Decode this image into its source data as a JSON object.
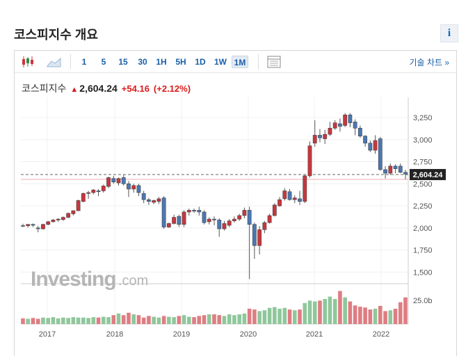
{
  "page": {
    "title": "코스피지수 개요",
    "info_label": "i"
  },
  "toolbar": {
    "timeframes": [
      "1",
      "5",
      "15",
      "30",
      "1H",
      "5H",
      "1D",
      "1W",
      "1M"
    ],
    "active_timeframe": "1M",
    "technical_label": "기술 차트 »"
  },
  "quote": {
    "name": "코스피지수",
    "price": "2,604.24",
    "change": "+54.16",
    "change_pct": "(+2.12%)"
  },
  "watermark": {
    "brand": "Investing",
    "suffix": ".com"
  },
  "colors": {
    "up": "#c9363e",
    "down": "#4a78b3",
    "vol_up": "#8fc79b",
    "vol_down": "#de7d82",
    "accent": "#1a5fa8"
  },
  "chart_data": {
    "type": "candlestick",
    "x_ticks": [
      "2017",
      "2018",
      "2019",
      "2020",
      "2021",
      "2022"
    ],
    "y_ticks": [
      "3,250",
      "3,000",
      "2,750",
      "2,500",
      "2,250",
      "2,000",
      "1,750",
      "1,500"
    ],
    "y_range": [
      1400,
      3400
    ],
    "volume_tick": "25.0b",
    "last_price": 2604.24,
    "last_price_label": "2,604.24",
    "reference_line": 2550,
    "candles": [
      [
        2026,
        2048,
        2010,
        2024
      ],
      [
        2024,
        2045,
        2004,
        2040
      ],
      [
        2040,
        2050,
        2010,
        2030
      ],
      [
        2000,
        2023,
        1950,
        1990
      ],
      [
        1990,
        2048,
        1980,
        2040
      ],
      [
        2040,
        2080,
        2030,
        2070
      ],
      [
        2070,
        2102,
        2060,
        2090
      ],
      [
        2090,
        2110,
        2070,
        2100
      ],
      [
        2095,
        2130,
        2080,
        2120
      ],
      [
        2120,
        2175,
        2110,
        2165
      ],
      [
        2160,
        2200,
        2140,
        2195
      ],
      [
        2195,
        2320,
        2190,
        2310
      ],
      [
        2300,
        2400,
        2290,
        2390
      ],
      [
        2390,
        2420,
        2330,
        2400
      ],
      [
        2400,
        2440,
        2380,
        2430
      ],
      [
        2420,
        2440,
        2360,
        2410
      ],
      [
        2420,
        2490,
        2400,
        2475
      ],
      [
        2470,
        2580,
        2450,
        2570
      ],
      [
        2560,
        2590,
        2500,
        2520
      ],
      [
        2510,
        2570,
        2480,
        2560
      ],
      [
        2570,
        2600,
        2480,
        2500
      ],
      [
        2500,
        2530,
        2350,
        2440
      ],
      [
        2440,
        2500,
        2400,
        2480
      ],
      [
        2480,
        2500,
        2360,
        2400
      ],
      [
        2390,
        2420,
        2280,
        2320
      ],
      [
        2320,
        2340,
        2260,
        2300
      ],
      [
        2290,
        2320,
        2270,
        2310
      ],
      [
        2300,
        2350,
        2270,
        2330
      ],
      [
        2340,
        2360,
        1990,
        2010
      ],
      [
        2010,
        2060,
        2000,
        2050
      ],
      [
        2050,
        2150,
        2040,
        2120
      ],
      [
        2130,
        2150,
        2010,
        2040
      ],
      [
        2040,
        2200,
        2010,
        2180
      ],
      [
        2180,
        2220,
        2140,
        2200
      ],
      [
        2200,
        2220,
        2170,
        2190
      ],
      [
        2200,
        2240,
        2140,
        2180
      ],
      [
        2180,
        2200,
        2040,
        2060
      ],
      [
        2070,
        2120,
        2040,
        2100
      ],
      [
        2100,
        2130,
        2030,
        2090
      ],
      [
        2090,
        2110,
        1900,
        1990
      ],
      [
        1990,
        2080,
        1970,
        2050
      ],
      [
        2030,
        2100,
        2010,
        2080
      ],
      [
        2080,
        2130,
        2060,
        2100
      ],
      [
        2100,
        2160,
        2080,
        2140
      ],
      [
        2140,
        2230,
        2110,
        2200
      ],
      [
        2200,
        2240,
        1420,
        2040
      ],
      [
        2040,
        2060,
        1650,
        1800
      ],
      [
        1800,
        2020,
        1700,
        1980
      ],
      [
        1980,
        2080,
        1940,
        2060
      ],
      [
        2060,
        2160,
        2050,
        2140
      ],
      [
        2140,
        2280,
        2130,
        2260
      ],
      [
        2250,
        2350,
        2240,
        2320
      ],
      [
        2330,
        2450,
        2310,
        2420
      ],
      [
        2410,
        2440,
        2310,
        2320
      ],
      [
        2320,
        2370,
        2280,
        2340
      ],
      [
        2330,
        2420,
        2260,
        2300
      ],
      [
        2300,
        2600,
        2280,
        2590
      ],
      [
        2590,
        2980,
        2570,
        2930
      ],
      [
        2960,
        3220,
        2920,
        3050
      ],
      [
        3050,
        3120,
        2970,
        3020
      ],
      [
        3010,
        3110,
        2950,
        3060
      ],
      [
        3060,
        3200,
        3040,
        3130
      ],
      [
        3130,
        3220,
        3110,
        3190
      ],
      [
        3180,
        3240,
        3090,
        3150
      ],
      [
        3160,
        3300,
        3140,
        3280
      ],
      [
        3280,
        3300,
        3140,
        3190
      ],
      [
        3200,
        3230,
        3050,
        3130
      ],
      [
        3130,
        3160,
        3020,
        3040
      ],
      [
        3040,
        3050,
        2920,
        2960
      ],
      [
        2960,
        2990,
        2860,
        2880
      ],
      [
        2880,
        3050,
        2840,
        2990
      ],
      [
        3010,
        3030,
        2650,
        2660
      ],
      [
        2660,
        2700,
        2560,
        2620
      ],
      [
        2620,
        2730,
        2600,
        2700
      ],
      [
        2700,
        2720,
        2620,
        2670
      ],
      [
        2700,
        2730,
        2620,
        2630
      ],
      [
        2630,
        2660,
        2550,
        2610
      ]
    ],
    "volume_heights": [
      0.14,
      0.13,
      0.15,
      0.13,
      0.16,
      0.15,
      0.17,
      0.14,
      0.16,
      0.15,
      0.17,
      0.16,
      0.16,
      0.15,
      0.17,
      0.16,
      0.18,
      0.17,
      0.22,
      0.26,
      0.22,
      0.28,
      0.24,
      0.22,
      0.16,
      0.2,
      0.18,
      0.16,
      0.2,
      0.18,
      0.17,
      0.2,
      0.22,
      0.18,
      0.17,
      0.2,
      0.22,
      0.24,
      0.24,
      0.22,
      0.2,
      0.24,
      0.22,
      0.24,
      0.26,
      0.38,
      0.36,
      0.32,
      0.34,
      0.4,
      0.42,
      0.38,
      0.4,
      0.36,
      0.34,
      0.36,
      0.52,
      0.58,
      0.56,
      0.58,
      0.62,
      0.68,
      0.62,
      0.82,
      0.66,
      0.56,
      0.46,
      0.43,
      0.41,
      0.36,
      0.38,
      0.45,
      0.32,
      0.34,
      0.38,
      0.54,
      0.66
    ]
  }
}
